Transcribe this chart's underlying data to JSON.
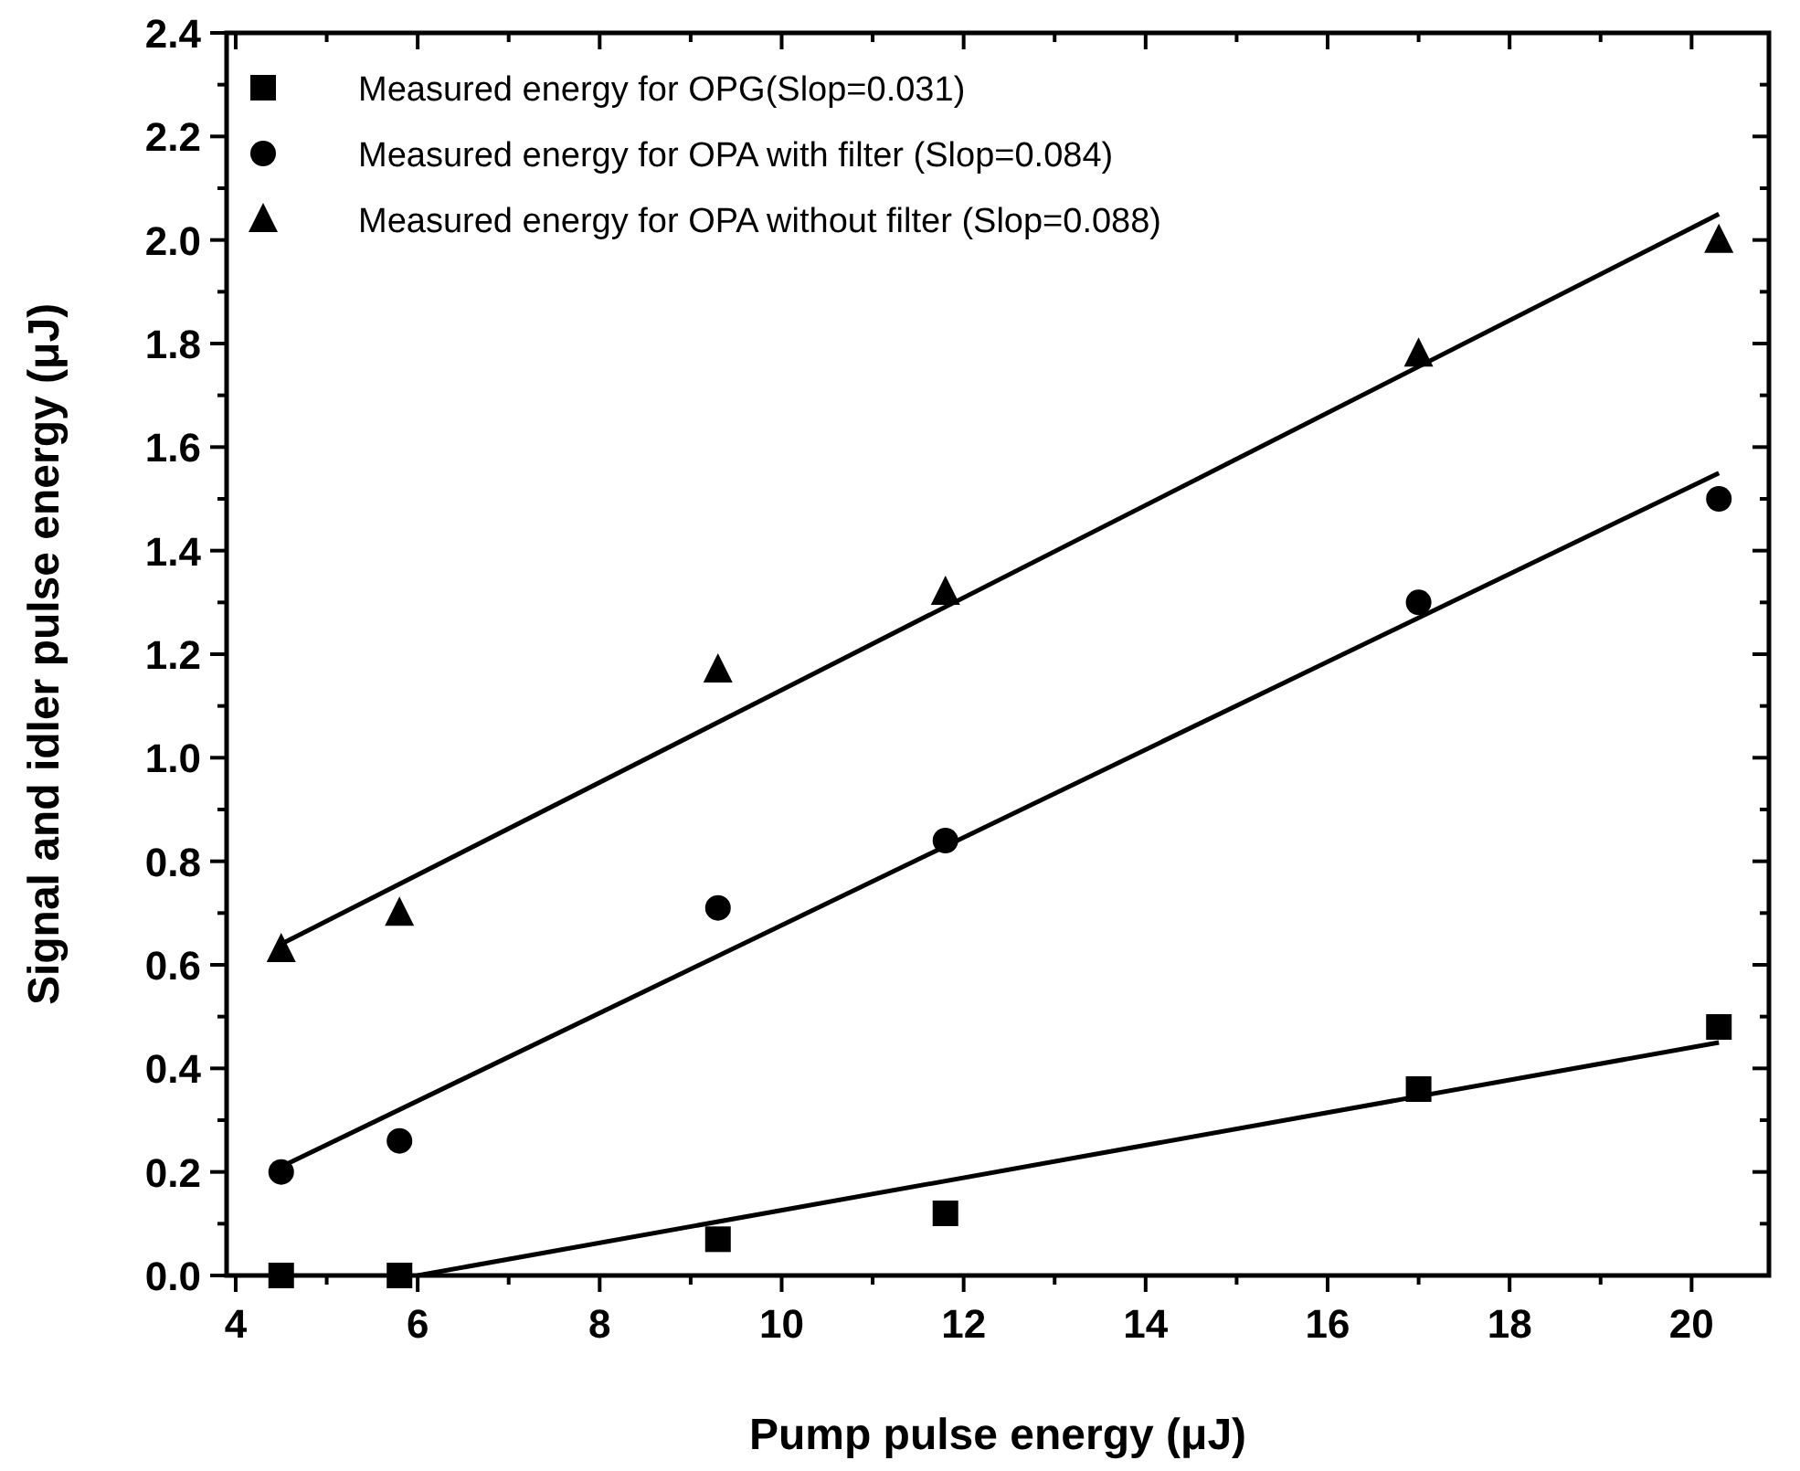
{
  "chart_data": {
    "type": "scatter",
    "xlabel": "Pump pulse energy (μJ)",
    "ylabel": "Signal and idler pulse energy (μJ)",
    "xlim": [
      3.9,
      20.85
    ],
    "ylim": [
      0,
      2.4
    ],
    "xticks": [
      4,
      6,
      8,
      10,
      12,
      14,
      16,
      18,
      20
    ],
    "yticks": [
      {
        "value": 0,
        "label": "0.0"
      },
      {
        "value": 0.2,
        "label": "0.2"
      },
      {
        "value": 0.4,
        "label": "0.4"
      },
      {
        "value": 0.6,
        "label": "0.6"
      },
      {
        "value": 0.8,
        "label": "0.8"
      },
      {
        "value": 1,
        "label": "1.0"
      },
      {
        "value": 1.2,
        "label": "1.2"
      },
      {
        "value": 1.4,
        "label": "1.4"
      },
      {
        "value": 1.6,
        "label": "1.6"
      },
      {
        "value": 1.8,
        "label": "1.8"
      },
      {
        "value": 2,
        "label": "2.0"
      },
      {
        "value": 2.2,
        "label": "2.2"
      },
      {
        "value": 2.4,
        "label": "2.4"
      }
    ],
    "grid": false,
    "legend": "top left",
    "x": [
      4.5,
      5.8,
      9.3,
      11.8,
      17,
      20.3
    ],
    "series": [
      {
        "name": "Measured energy for OPG(Slop=0.031)",
        "color": "#000000",
        "marker": "square",
        "values": [
          0,
          0,
          0.07,
          0.12,
          0.36,
          0.48
        ]
      },
      {
        "name": "Measured energy for OPA with filter (Slop=0.084)",
        "color": "#000000",
        "marker": "circle",
        "values": [
          0.2,
          0.26,
          0.71,
          0.84,
          1.3,
          1.5
        ]
      },
      {
        "name": "Measured energy for OPA without filter (Slop=0.088)",
        "color": "#000000",
        "marker": "triangle",
        "values": [
          0.63,
          0.7,
          1.17,
          1.32,
          1.78,
          2.0
        ]
      },
      {
        "type": "line",
        "color": "#000000",
        "marker": "none",
        "x": [
          6.0,
          20.3
        ],
        "values": [
          0,
          0.45
        ]
      },
      {
        "type": "line",
        "color": "#000000",
        "marker": "none",
        "x": [
          4.5,
          20.3
        ],
        "values": [
          0.21,
          1.55
        ]
      },
      {
        "type": "line",
        "color": "#000000",
        "marker": "none",
        "x": [
          4.5,
          20.3
        ],
        "values": [
          0.64,
          2.05
        ]
      }
    ]
  }
}
